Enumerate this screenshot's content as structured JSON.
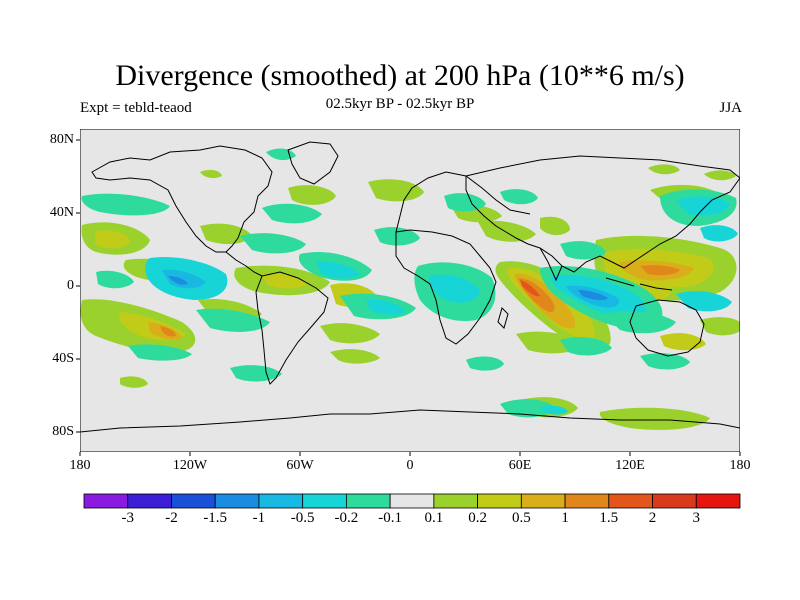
{
  "header": {
    "title": "Divergence (smoothed) at 200 hPa (10**6 m/s)",
    "left_label": "Expt = tebld-teaod",
    "center_label": "02.5kyr BP - 02.5kyr BP",
    "right_label": "JJA"
  },
  "axes": {
    "lat_labels": [
      "80N",
      "40N",
      "0",
      "40S",
      "80S"
    ],
    "lon_labels": [
      "180",
      "120W",
      "60W",
      "0",
      "60E",
      "120E",
      "180"
    ]
  },
  "colorbar": {
    "labels": [
      "-3",
      "-2",
      "-1.5",
      "-1",
      "-0.5",
      "-0.2",
      "-0.1",
      "0.1",
      "0.2",
      "0.5",
      "1",
      "1.5",
      "2",
      "3"
    ],
    "colors": [
      "#8a1adf",
      "#3c1ed6",
      "#1a50d8",
      "#1a8de0",
      "#19b8e2",
      "#17d4d6",
      "#2edb9d",
      "#e6e6e6",
      "#9bd12c",
      "#c3cb19",
      "#d9ae1a",
      "#e0861a",
      "#e2561b",
      "#d93a1b",
      "#e5160f"
    ]
  },
  "map": {
    "land_color": "#e6e6e6",
    "coast_color": "#000000"
  }
}
